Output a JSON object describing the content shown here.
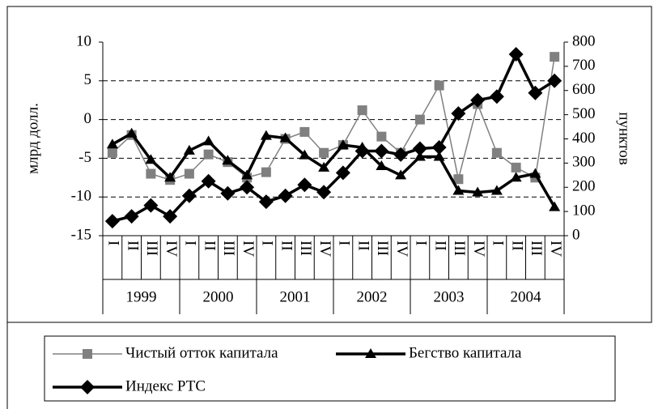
{
  "chart_data": {
    "type": "line",
    "categories": [
      "I",
      "II",
      "III",
      "IV",
      "I",
      "II",
      "III",
      "IV",
      "I",
      "II",
      "III",
      "IV",
      "I",
      "II",
      "III",
      "IV",
      "I",
      "II",
      "III",
      "IV",
      "I",
      "II",
      "III",
      "IV"
    ],
    "years": [
      "1999",
      "2000",
      "2001",
      "2002",
      "2003",
      "2004"
    ],
    "y_label": "млрд долл.",
    "y2_label": "пунктов",
    "ylim": [
      -15,
      10
    ],
    "yticks": [
      -15,
      -10,
      -5,
      0,
      5,
      10
    ],
    "y2lim": [
      0,
      800
    ],
    "y2ticks": [
      0,
      100,
      200,
      300,
      400,
      500,
      600,
      700,
      800
    ],
    "grid": true,
    "legend": "bottom",
    "series": [
      {
        "name": "Чистый отток капитала",
        "color": "#808080",
        "marker": "square",
        "line_width": 1.5,
        "values": [
          -4.3,
          -2,
          -7,
          -7.8,
          -7,
          -4.5,
          -5.5,
          -7.5,
          -6.8,
          -2.5,
          -1.6,
          -4.3,
          -3.3,
          1.2,
          -2.2,
          -4.3,
          0,
          4.4,
          -7.7,
          2,
          -4.3,
          -6.2,
          -7.5,
          8.1
        ]
      },
      {
        "name": "Бегство капитала",
        "color": "#000000",
        "marker": "triangle",
        "line_width": 3.5,
        "values": [
          -3.2,
          -1.8,
          -5.2,
          -7.5,
          -4,
          -2.8,
          -5.3,
          -7.2,
          -2.1,
          -2.4,
          -4.6,
          -6.2,
          -3.3,
          -3.6,
          -6,
          -7.2,
          -4.8,
          -4.8,
          -9.2,
          -9.4,
          -9.2,
          -7.5,
          -7,
          -11.3
        ]
      },
      {
        "name": "Индекс РТС",
        "color": "#000000",
        "marker": "diamond",
        "line_width": 3.5,
        "axis": "y2",
        "values": [
          60,
          80,
          125,
          80,
          165,
          225,
          175,
          200,
          140,
          165,
          210,
          180,
          260,
          350,
          350,
          335,
          360,
          365,
          505,
          560,
          575,
          750,
          590,
          640
        ]
      }
    ]
  }
}
